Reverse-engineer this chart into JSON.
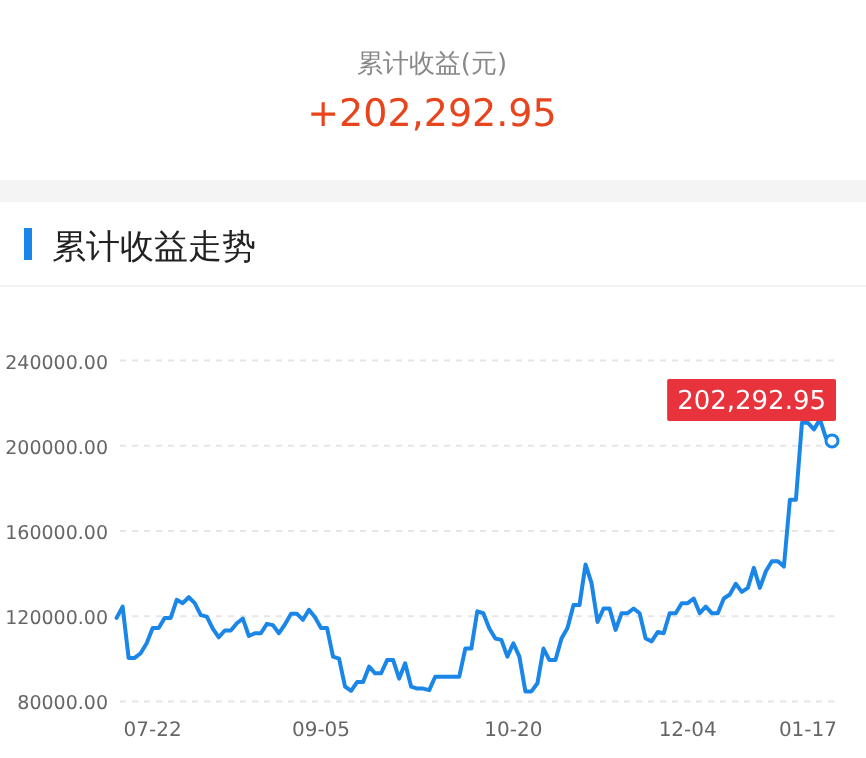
{
  "chart_data": {
    "type": "line",
    "title": "累计收益走势",
    "annotations": [
      "累计收益(元)",
      "+202,292.95"
    ],
    "categories": [
      null,
      null,
      null,
      null,
      null,
      null,
      "07-22",
      null,
      null,
      null,
      null,
      null,
      null,
      null,
      null,
      null,
      null,
      null,
      null,
      null,
      null,
      null,
      null,
      null,
      null,
      null,
      null,
      null,
      null,
      null,
      null,
      null,
      null,
      null,
      "09-05",
      null,
      null,
      null,
      null,
      null,
      null,
      null,
      null,
      null,
      null,
      null,
      null,
      null,
      null,
      null,
      null,
      null,
      null,
      null,
      null,
      null,
      null,
      null,
      null,
      null,
      null,
      null,
      null,
      null,
      null,
      null,
      "10-20",
      null,
      null,
      null,
      null,
      null,
      null,
      null,
      null,
      null,
      null,
      null,
      null,
      null,
      null,
      null,
      null,
      null,
      null,
      null,
      null,
      null,
      null,
      null,
      null,
      null,
      null,
      null,
      null,
      "12-04",
      null,
      null,
      null,
      null,
      null,
      null,
      null,
      null,
      null,
      null,
      null,
      null,
      null,
      null,
      null,
      null,
      null,
      null,
      null,
      "01-17",
      null,
      null,
      null,
      null
    ],
    "series": [
      {
        "color": "#1a87e8",
        "values": [
          119200,
          124500,
          100400,
          100400,
          102600,
          107300,
          114500,
          114500,
          119200,
          119200,
          127700,
          126100,
          128900,
          126100,
          120500,
          119800,
          114200,
          110100,
          113300,
          113300,
          116700,
          118900,
          110700,
          112000,
          112000,
          116400,
          115800,
          112000,
          116100,
          121100,
          121100,
          118300,
          123000,
          119500,
          114500,
          114500,
          101000,
          100100,
          86900,
          85000,
          89100,
          89100,
          96300,
          93200,
          93200,
          99400,
          99400,
          90700,
          97900,
          86900,
          86000,
          86000,
          85300,
          91600,
          91600,
          91600,
          91600,
          91600,
          104800,
          104800,
          122300,
          121400,
          114200,
          109500,
          108900,
          101000,
          107300,
          101000,
          84700,
          84700,
          88500,
          104800,
          99400,
          99400,
          109500,
          114500,
          125200,
          125200,
          144300,
          135500,
          117300,
          123600,
          123600,
          113600,
          121400,
          121400,
          123600,
          121400,
          109500,
          108200,
          112600,
          112000,
          121400,
          121400,
          126100,
          126100,
          128300,
          121400,
          124500,
          121400,
          121400,
          128300,
          130200,
          135200,
          131400,
          133300,
          142700,
          133300,
          141100,
          145800,
          145800,
          143300,
          174700,
          174700,
          210800,
          210800,
          207700,
          212400,
          203600,
          202292.95
        ],
        "value_labels": [
          null,
          null,
          null,
          null,
          null,
          null,
          null,
          null,
          null,
          null,
          null,
          null,
          null,
          null,
          null,
          null,
          null,
          null,
          null,
          null,
          null,
          null,
          null,
          null,
          null,
          null,
          null,
          null,
          null,
          null,
          null,
          null,
          null,
          null,
          null,
          null,
          null,
          null,
          null,
          null,
          null,
          null,
          null,
          null,
          null,
          null,
          null,
          null,
          null,
          null,
          null,
          null,
          null,
          null,
          null,
          null,
          null,
          null,
          null,
          null,
          null,
          null,
          null,
          null,
          null,
          null,
          null,
          null,
          null,
          null,
          null,
          null,
          null,
          null,
          null,
          null,
          null,
          null,
          null,
          null,
          null,
          null,
          null,
          null,
          null,
          null,
          null,
          null,
          null,
          null,
          null,
          null,
          null,
          null,
          null,
          null,
          null,
          null,
          null,
          null,
          null,
          null,
          null,
          null,
          null,
          null,
          null,
          null,
          null,
          null,
          null,
          null,
          null,
          null,
          null,
          null,
          null,
          null,
          null,
          "202,292.95"
        ]
      }
    ],
    "ylim": [
      80000,
      240000
    ],
    "yticks": [
      {
        "value": 80000,
        "label": "80000.00"
      },
      {
        "value": 120000,
        "label": "120000.00"
      },
      {
        "value": 160000,
        "label": "160000.00"
      },
      {
        "value": 200000,
        "label": "200000.00"
      },
      {
        "value": 240000,
        "label": "240000.00"
      }
    ],
    "grid": "y"
  }
}
